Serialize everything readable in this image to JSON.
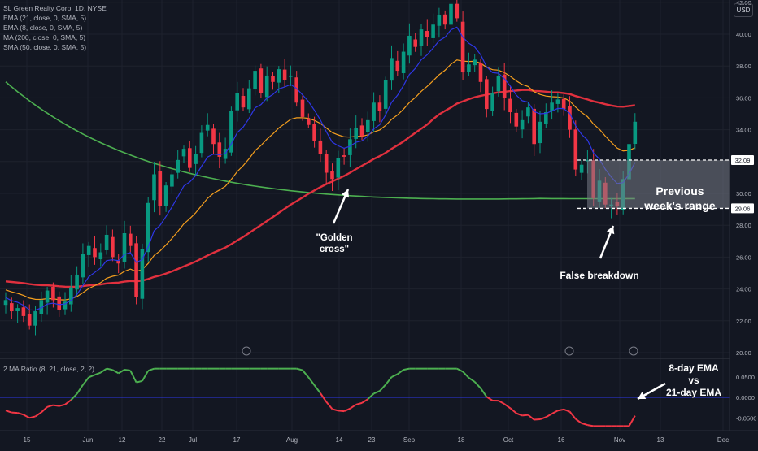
{
  "legend": {
    "title": "SL Green Realty Corp, 1D, NYSE",
    "line1": "EMA (21, close, 0, SMA, 5)",
    "line2": "EMA (8, close, 0, SMA, 5)",
    "line3": "MA (200, close, 0, SMA, 5)",
    "line4": "SMA (50, close, 0, SMA, 5)",
    "oscillator": "2 MA Ratio (8, 21, close, 2, 2)"
  },
  "currency_button": "USD",
  "annotations": {
    "golden_cross": "\"Golden cross\"",
    "range_line1": "Previous",
    "range_line2": "week's range",
    "false_breakdown": "False breakdown",
    "ema_line1": "8-day EMA",
    "ema_line2": "vs",
    "ema_line3": "21-day EMA"
  },
  "colors": {
    "background": "#131722",
    "up_candle": "#089981",
    "down_candle": "#f23645",
    "ema21": "#f59f1e",
    "ema8": "#2e37e6",
    "ma200": "#4caf50",
    "sma50": "#e0303e",
    "ratio_positive": "#4caf50",
    "ratio_negative": "#f23645",
    "zero_line": "#2e37e6"
  },
  "chart_data": {
    "type": "candlestick",
    "title": "SL Green Realty Corp, 1D, NYSE",
    "y_ticks": [
      "20.00",
      "22.00",
      "24.00",
      "26.00",
      "28.00",
      "30.00",
      "32.00",
      "34.00",
      "36.00",
      "38.00",
      "40.00",
      "42.00"
    ],
    "ylim": [
      20,
      43
    ],
    "x_ticks": [
      "15",
      "Jun",
      "12",
      "22",
      "Jul",
      "17",
      "Aug",
      "14",
      "23",
      "Sep",
      "18",
      "Oct",
      "16",
      "Nov",
      "13",
      "Dec"
    ],
    "price_labels": [
      "32.09",
      "29.06"
    ],
    "previous_week_range": [
      29.06,
      32.09
    ],
    "closes": [
      23.3,
      22.6,
      22.8,
      22.3,
      21.7,
      22.6,
      23.3,
      23.9,
      23.3,
      22.7,
      23.2,
      24.1,
      24.9,
      26.2,
      26.7,
      26.0,
      26.3,
      27.4,
      26.0,
      25.6,
      27.5,
      26.7,
      23.5,
      26.5,
      29.4,
      31.2,
      29.2,
      30.5,
      31.2,
      32.1,
      32.8,
      31.6,
      32.5,
      33.8,
      34.3,
      33.1,
      32.3,
      32.8,
      35.2,
      36.3,
      35.4,
      36.6,
      37.7,
      36.3,
      37.4,
      37.0,
      37.8,
      37.1,
      37.4,
      35.7,
      34.8,
      34.3,
      33.3,
      32.5,
      31.3,
      30.9,
      32.2,
      32.3,
      33.4,
      34.1,
      33.6,
      34.6,
      35.7,
      35.2,
      37.1,
      38.5,
      37.7,
      38.9,
      39.9,
      39.2,
      40.3,
      39.8,
      40.6,
      41.2,
      40.6,
      41.9,
      41.0,
      37.6,
      38.1,
      38.4,
      37.0,
      35.3,
      36.3,
      37.4,
      36.0,
      35.1,
      34.2,
      34.6,
      35.4,
      33.1,
      34.5,
      35.1,
      35.7,
      35.9,
      35.3,
      34.0,
      31.5,
      31.8,
      32.1,
      29.7,
      30.8,
      29.3,
      29.3,
      29.2,
      30.9,
      33.1,
      34.5
    ],
    "series": [
      {
        "name": "EMA (21, close, 0, SMA, 5)",
        "color": "#f59f1e"
      },
      {
        "name": "EMA (8, close, 0, SMA, 5)",
        "color": "#2e37e6"
      },
      {
        "name": "MA (200, close, 0, SMA, 5)",
        "color": "#4caf50"
      },
      {
        "name": "SMA (50, close, 0, SMA, 5)",
        "color": "#e0303e"
      }
    ],
    "oscillator": {
      "name": "2 MA Ratio (8, 21, close, 2, 2)",
      "y_ticks": [
        "0.0500",
        "0.0000",
        "-0.0500"
      ]
    }
  }
}
